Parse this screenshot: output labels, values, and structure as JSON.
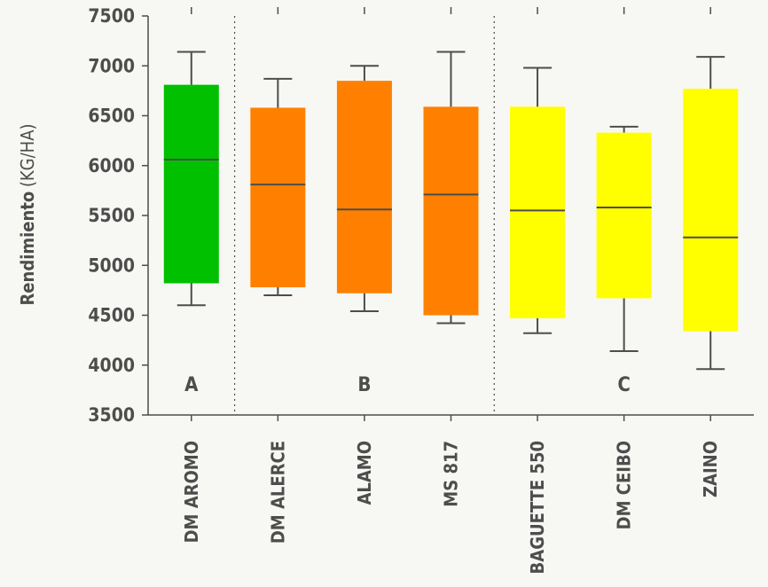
{
  "chart_data": {
    "type": "box",
    "ylabel": "Rendimiento",
    "ylabel_unit": "(KG/HA)",
    "ylim": [
      3500,
      7500
    ],
    "yticks": [
      "7500",
      "7000",
      "6500",
      "6000",
      "5500",
      "5000",
      "4500",
      "4000",
      "3500"
    ],
    "grid": false,
    "categories": [
      "DM AROMO",
      "DM ALERCE",
      "ALAMO",
      "MS 817",
      "BAGUETTE 550",
      "DM CEIBO",
      "ZAINO"
    ],
    "boxes": [
      {
        "min": 4600,
        "q1": 4820,
        "median": 6060,
        "q3": 6810,
        "max": 7140,
        "color": "#00c000"
      },
      {
        "min": 4700,
        "q1": 4780,
        "median": 5810,
        "q3": 6580,
        "max": 6870,
        "color": "#ff8000"
      },
      {
        "min": 4540,
        "q1": 4720,
        "median": 5560,
        "q3": 6850,
        "max": 7000,
        "color": "#ff8000"
      },
      {
        "min": 4420,
        "q1": 4500,
        "median": 5710,
        "q3": 6590,
        "max": 7140,
        "color": "#ff8000"
      },
      {
        "min": 4320,
        "q1": 4470,
        "median": 5550,
        "q3": 6590,
        "max": 6980,
        "color": "#ffff00"
      },
      {
        "min": 4140,
        "q1": 4670,
        "median": 5580,
        "q3": 6330,
        "max": 6390,
        "color": "#ffff00"
      },
      {
        "min": 3960,
        "q1": 4340,
        "median": 5280,
        "q3": 6770,
        "max": 7090,
        "color": "#ffff00"
      }
    ],
    "groups": [
      {
        "label": "A",
        "categories": [
          "DM AROMO"
        ]
      },
      {
        "label": "B",
        "categories": [
          "DM ALERCE",
          "ALAMO",
          "MS 817"
        ]
      },
      {
        "label": "C",
        "categories": [
          "BAGUETTE 550",
          "DM CEIBO",
          "ZAINO"
        ]
      }
    ],
    "group_separators_after_index": [
      0,
      3
    ]
  },
  "colors": {
    "axis": "#4d4d4d",
    "background": "#f7f8f3"
  }
}
